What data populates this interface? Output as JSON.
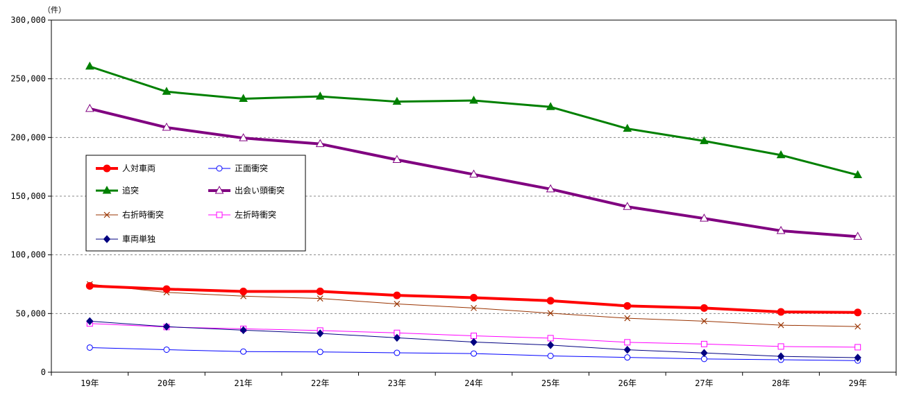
{
  "chart_data": {
    "type": "line",
    "unit_label": "（件）",
    "categories": [
      "19年",
      "20年",
      "21年",
      "22年",
      "23年",
      "24年",
      "25年",
      "26年",
      "27年",
      "28年",
      "29年"
    ],
    "ylim": [
      0,
      300000
    ],
    "yticks": [
      0,
      50000,
      100000,
      150000,
      200000,
      250000,
      300000
    ],
    "ytick_labels": [
      "0",
      "50,000",
      "100,000",
      "150,000",
      "200,000",
      "250,000",
      "300,000"
    ],
    "grid": "horizontal dashed",
    "legend_position": "upper-left (inside plot)",
    "series": [
      {
        "name": "人対車両",
        "color": "#ff0000",
        "marker": "circle-filled",
        "width": 4,
        "values": [
          73500,
          70800,
          68800,
          68900,
          65500,
          63500,
          60900,
          56500,
          54700,
          51400,
          50900
        ]
      },
      {
        "name": "正面衝突",
        "color": "#0000ff",
        "marker": "circle-open",
        "width": 1,
        "values": [
          21000,
          19200,
          17600,
          17300,
          16500,
          15900,
          13900,
          12600,
          11300,
          10600,
          9900
        ]
      },
      {
        "name": "追突",
        "color": "#008000",
        "marker": "triangle-filled",
        "width": 3,
        "values": [
          260500,
          239000,
          233000,
          235000,
          230500,
          231500,
          226000,
          207500,
          197000,
          185000,
          168000
        ]
      },
      {
        "name": "出会い頭衝突",
        "color": "#800080",
        "marker": "triangle-open",
        "width": 4,
        "values": [
          224500,
          208500,
          199500,
          194500,
          181000,
          168500,
          156000,
          141000,
          131000,
          120500,
          115500
        ]
      },
      {
        "name": "右折時衝突",
        "color": "#993300",
        "marker": "x",
        "width": 1,
        "values": [
          75000,
          68000,
          64800,
          62800,
          58200,
          54700,
          50300,
          46000,
          43500,
          40100,
          38900
        ]
      },
      {
        "name": "左折時衝突",
        "color": "#ff00ff",
        "marker": "square-open",
        "width": 1,
        "values": [
          41500,
          38500,
          37000,
          35500,
          33500,
          31000,
          29000,
          25500,
          24000,
          21900,
          21300
        ]
      },
      {
        "name": "車両単独",
        "color": "#000080",
        "marker": "diamond-filled",
        "width": 1,
        "values": [
          43500,
          38800,
          35800,
          33100,
          29300,
          25700,
          23100,
          19100,
          16400,
          13500,
          12400
        ]
      }
    ]
  }
}
